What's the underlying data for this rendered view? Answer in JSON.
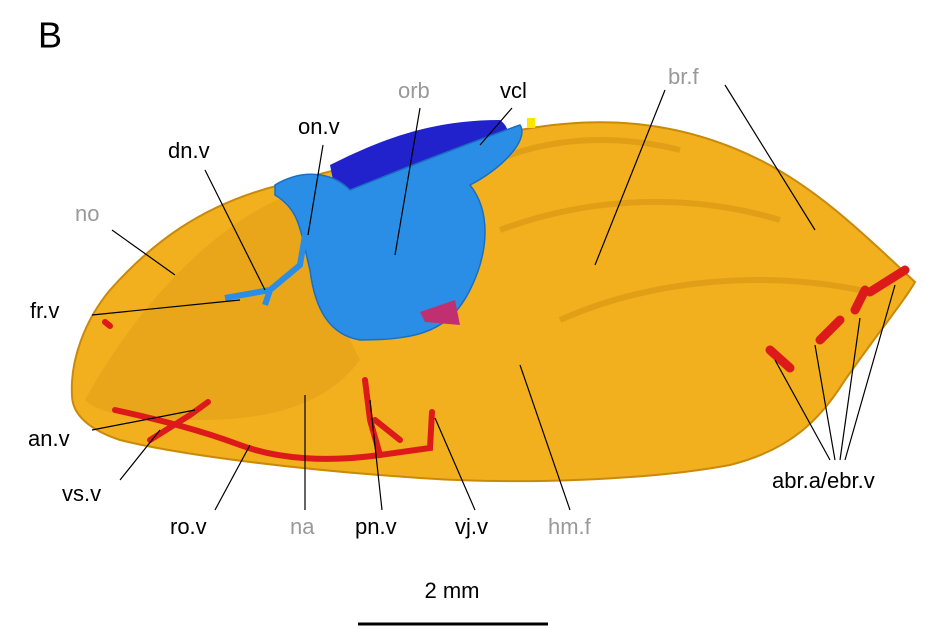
{
  "panel": "B",
  "labels": {
    "orb": "orb",
    "vcl": "vcl",
    "br_f": "br.f",
    "on_v": "on.v",
    "dn_v": "dn.v",
    "no": "no",
    "fr_v": "fr.v",
    "an_v": "an.v",
    "vs_v": "vs.v",
    "ro_v": "ro.v",
    "na": "na",
    "pn_v": "pn.v",
    "vj_v": "vj.v",
    "hm_f": "hm.f",
    "abr_ebr": "abr.a/ebr.v"
  },
  "scale_bar": "2 mm"
}
